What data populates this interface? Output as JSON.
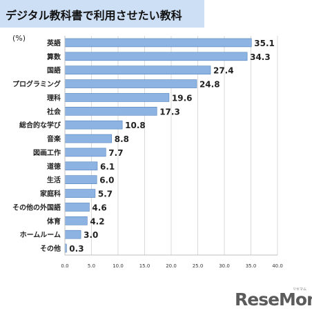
{
  "title": "デジタル教科書で利用させたい教科",
  "unit_label": "(%)",
  "logo": "ReseMom",
  "logo_sub": "リセマム",
  "colors": {
    "title_bg": "#cddff4",
    "bar_fill": "#8db3e2",
    "bar_stroke": "#4f81bd",
    "grid": "#d9d9d9"
  },
  "chart_data": {
    "type": "bar",
    "orientation": "horizontal",
    "categories": [
      "英語",
      "算数",
      "国語",
      "プログラミング",
      "理科",
      "社会",
      "総合的な学び",
      "音楽",
      "図画工作",
      "道徳",
      "生活",
      "家庭科",
      "その他の外国語",
      "体育",
      "ホームルーム",
      "その他"
    ],
    "values": [
      35.1,
      34.3,
      27.4,
      24.8,
      19.6,
      17.3,
      10.8,
      8.8,
      7.7,
      6.1,
      6.0,
      5.7,
      4.6,
      4.2,
      3.0,
      0.3
    ],
    "data_labels": [
      "35.1",
      "34.3",
      "27.4",
      "24.8",
      "19.6",
      "17.3",
      "10.8",
      "8.8",
      "7.7",
      "6.1",
      "6.0",
      "5.7",
      "4.6",
      "4.2",
      "3.0",
      "0.3"
    ],
    "x_ticks": [
      "0.0",
      "5.0",
      "10.0",
      "15.0",
      "20.0",
      "25.0",
      "30.0",
      "35.0",
      "40.0"
    ],
    "xlim": [
      0,
      40
    ],
    "grid": true,
    "legend": "none"
  }
}
